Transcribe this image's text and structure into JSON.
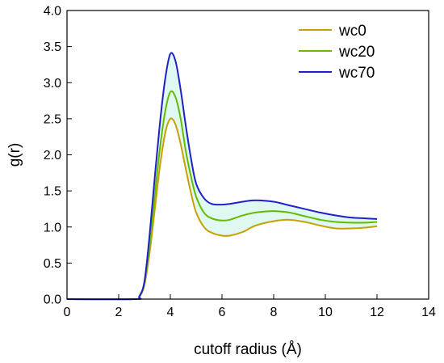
{
  "chart_data": {
    "type": "line",
    "title": "",
    "xlabel": "cutoff radius (Å)",
    "ylabel": "g(r)",
    "xlim": [
      0,
      14
    ],
    "ylim": [
      0,
      4.0
    ],
    "xticks": [
      "0",
      "2",
      "4",
      "6",
      "8",
      "10",
      "12",
      "14"
    ],
    "yticks": [
      "0.0",
      "0.5",
      "1.0",
      "1.5",
      "2.0",
      "2.5",
      "3.0",
      "3.5",
      "4.0"
    ],
    "grid": false,
    "legend_position": "top-right",
    "series": [
      {
        "name": "wc0",
        "color": "#c8a000",
        "x": [
          0,
          2.6,
          2.8,
          3.0,
          3.2,
          3.4,
          3.6,
          3.8,
          4.0,
          4.2,
          4.4,
          4.6,
          4.8,
          5.0,
          5.3,
          5.6,
          6.0,
          6.3,
          6.8,
          7.3,
          8.0,
          8.6,
          9.2,
          9.8,
          10.4,
          11.0,
          11.5,
          12.0
        ],
        "y": [
          0,
          0,
          0.03,
          0.2,
          0.65,
          1.25,
          1.85,
          2.3,
          2.5,
          2.42,
          2.15,
          1.8,
          1.47,
          1.2,
          1.0,
          0.92,
          0.88,
          0.88,
          0.93,
          1.02,
          1.08,
          1.1,
          1.07,
          1.02,
          0.98,
          0.98,
          0.99,
          1.01
        ]
      },
      {
        "name": "wc20",
        "color": "#66bb00",
        "x": [
          0,
          2.6,
          2.8,
          3.0,
          3.2,
          3.4,
          3.6,
          3.8,
          4.0,
          4.2,
          4.4,
          4.6,
          4.8,
          5.0,
          5.3,
          5.6,
          6.0,
          6.3,
          6.8,
          7.3,
          8.0,
          8.6,
          9.2,
          9.8,
          10.4,
          11.0,
          11.5,
          12.0
        ],
        "y": [
          0,
          0,
          0.03,
          0.22,
          0.75,
          1.45,
          2.1,
          2.6,
          2.87,
          2.8,
          2.5,
          2.05,
          1.7,
          1.42,
          1.2,
          1.12,
          1.09,
          1.1,
          1.16,
          1.2,
          1.22,
          1.2,
          1.15,
          1.1,
          1.07,
          1.06,
          1.06,
          1.07
        ]
      },
      {
        "name": "wc70",
        "color": "#2020c8",
        "x": [
          0,
          2.6,
          2.8,
          3.0,
          3.2,
          3.4,
          3.6,
          3.8,
          4.0,
          4.2,
          4.4,
          4.6,
          4.8,
          5.0,
          5.3,
          5.6,
          6.0,
          6.3,
          6.8,
          7.3,
          8.0,
          8.6,
          9.2,
          9.8,
          10.4,
          11.0,
          11.5,
          12.0
        ],
        "y": [
          0,
          0,
          0.04,
          0.25,
          0.9,
          1.7,
          2.45,
          3.05,
          3.4,
          3.3,
          2.9,
          2.4,
          1.95,
          1.6,
          1.4,
          1.32,
          1.31,
          1.32,
          1.35,
          1.37,
          1.35,
          1.3,
          1.25,
          1.2,
          1.16,
          1.13,
          1.12,
          1.11
        ]
      }
    ]
  }
}
